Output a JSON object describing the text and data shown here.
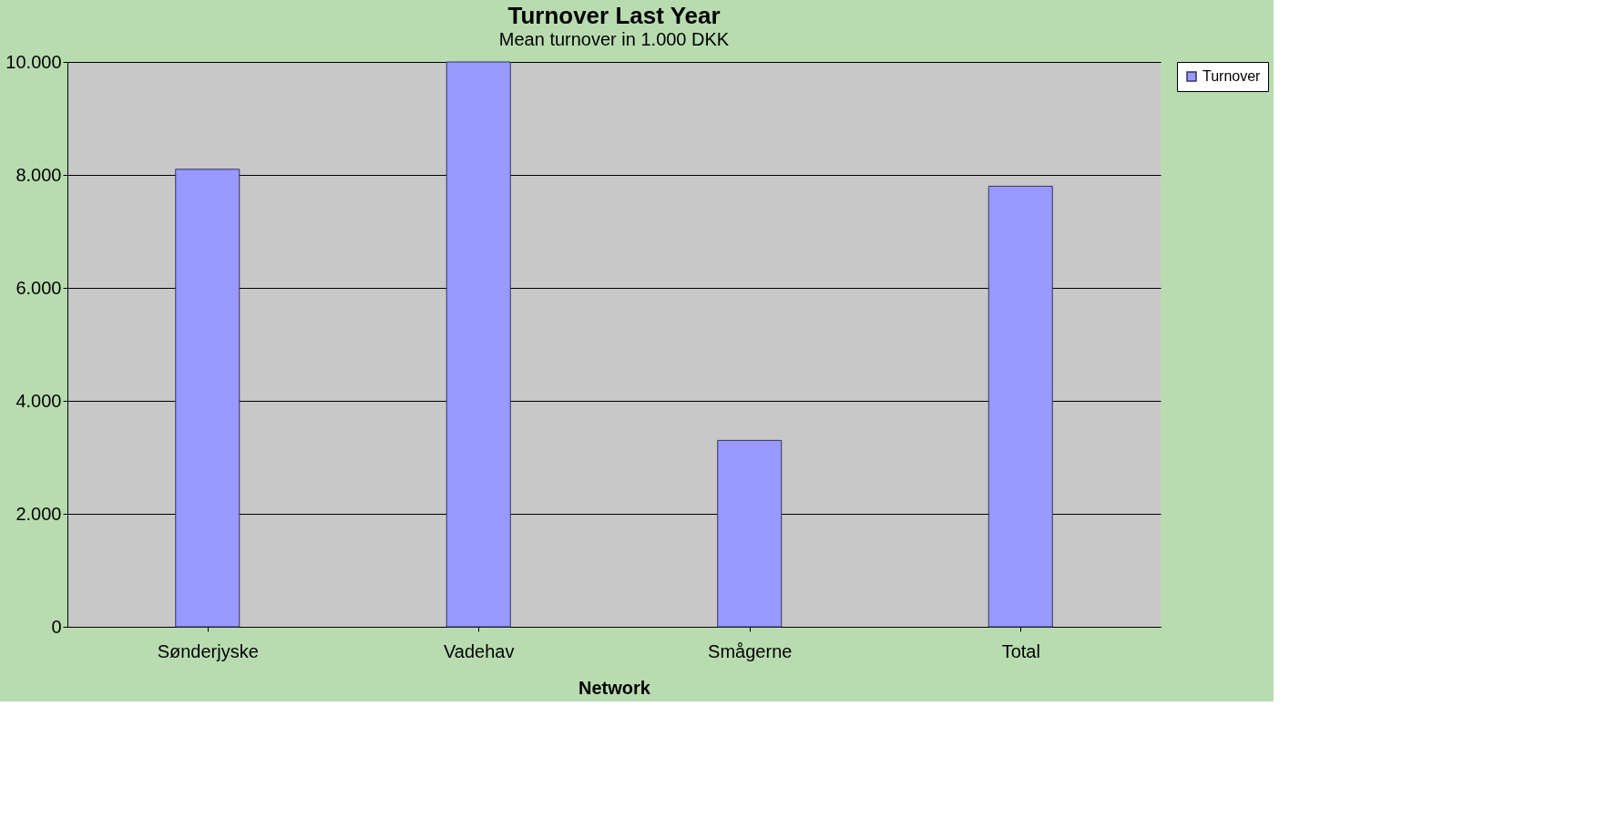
{
  "chart_data": {
    "type": "bar",
    "title": "Turnover Last Year",
    "subtitle": "Mean turnover  in 1.000 DKK",
    "xlabel": "Network",
    "categories": [
      "Sønderjyske",
      "Vadehav",
      "Smågerne",
      "Total"
    ],
    "series": [
      {
        "name": "Turnover",
        "color": "#9999ff",
        "values": [
          8100,
          10000,
          3300,
          7800
        ]
      }
    ],
    "ylim": [
      0,
      10000
    ],
    "yticks": [
      0,
      {
        "value": 2000,
        "label": "2.000"
      },
      {
        "value": 4000,
        "label": "4.000"
      },
      {
        "value": 6000,
        "label": "6.000"
      },
      {
        "value": 8000,
        "label": "8.000"
      },
      {
        "value": 10000,
        "label": "10.000"
      }
    ],
    "grid": "y",
    "legend": "top right"
  }
}
